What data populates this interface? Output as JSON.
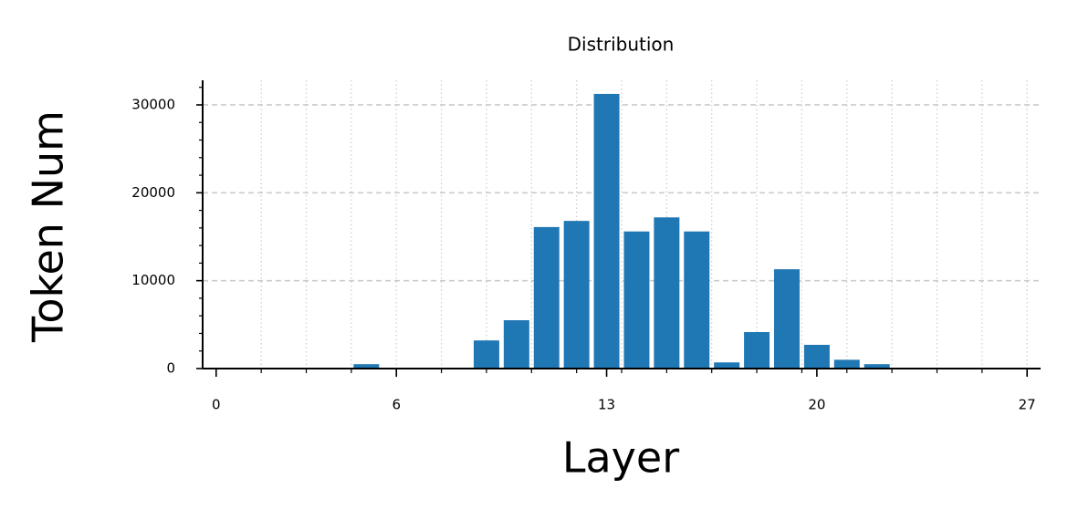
{
  "chart_data": {
    "type": "bar",
    "title": "Distribution",
    "x_label": "Layer",
    "y_label": "Token Num",
    "x": [
      5,
      9,
      10,
      11,
      12,
      13,
      14,
      15,
      16,
      17,
      18,
      19,
      20,
      21,
      22
    ],
    "values": [
      500,
      3200,
      5500,
      16100,
      16800,
      31250,
      15600,
      17200,
      15600,
      700,
      4150,
      11300,
      2700,
      1000,
      500
    ],
    "color": "#1f77b4",
    "bar_width": 0.85,
    "xlim": [
      -0.45,
      27.45
    ],
    "xticks": [
      0,
      6,
      13,
      20,
      27
    ],
    "xminorticks": [
      1.5,
      3,
      4.5,
      6,
      7.5,
      9,
      10.5,
      12,
      13.5,
      15,
      16.5,
      18,
      19.5,
      21,
      22.5,
      24,
      25.5,
      27
    ],
    "ylim": [
      0,
      32800
    ],
    "yticks": [
      0,
      10000,
      20000,
      30000
    ],
    "yminorticks": [
      2000,
      4000,
      6000,
      8000,
      12000,
      14000,
      16000,
      18000,
      22000,
      24000,
      26000,
      28000,
      32000
    ],
    "grid": true
  }
}
